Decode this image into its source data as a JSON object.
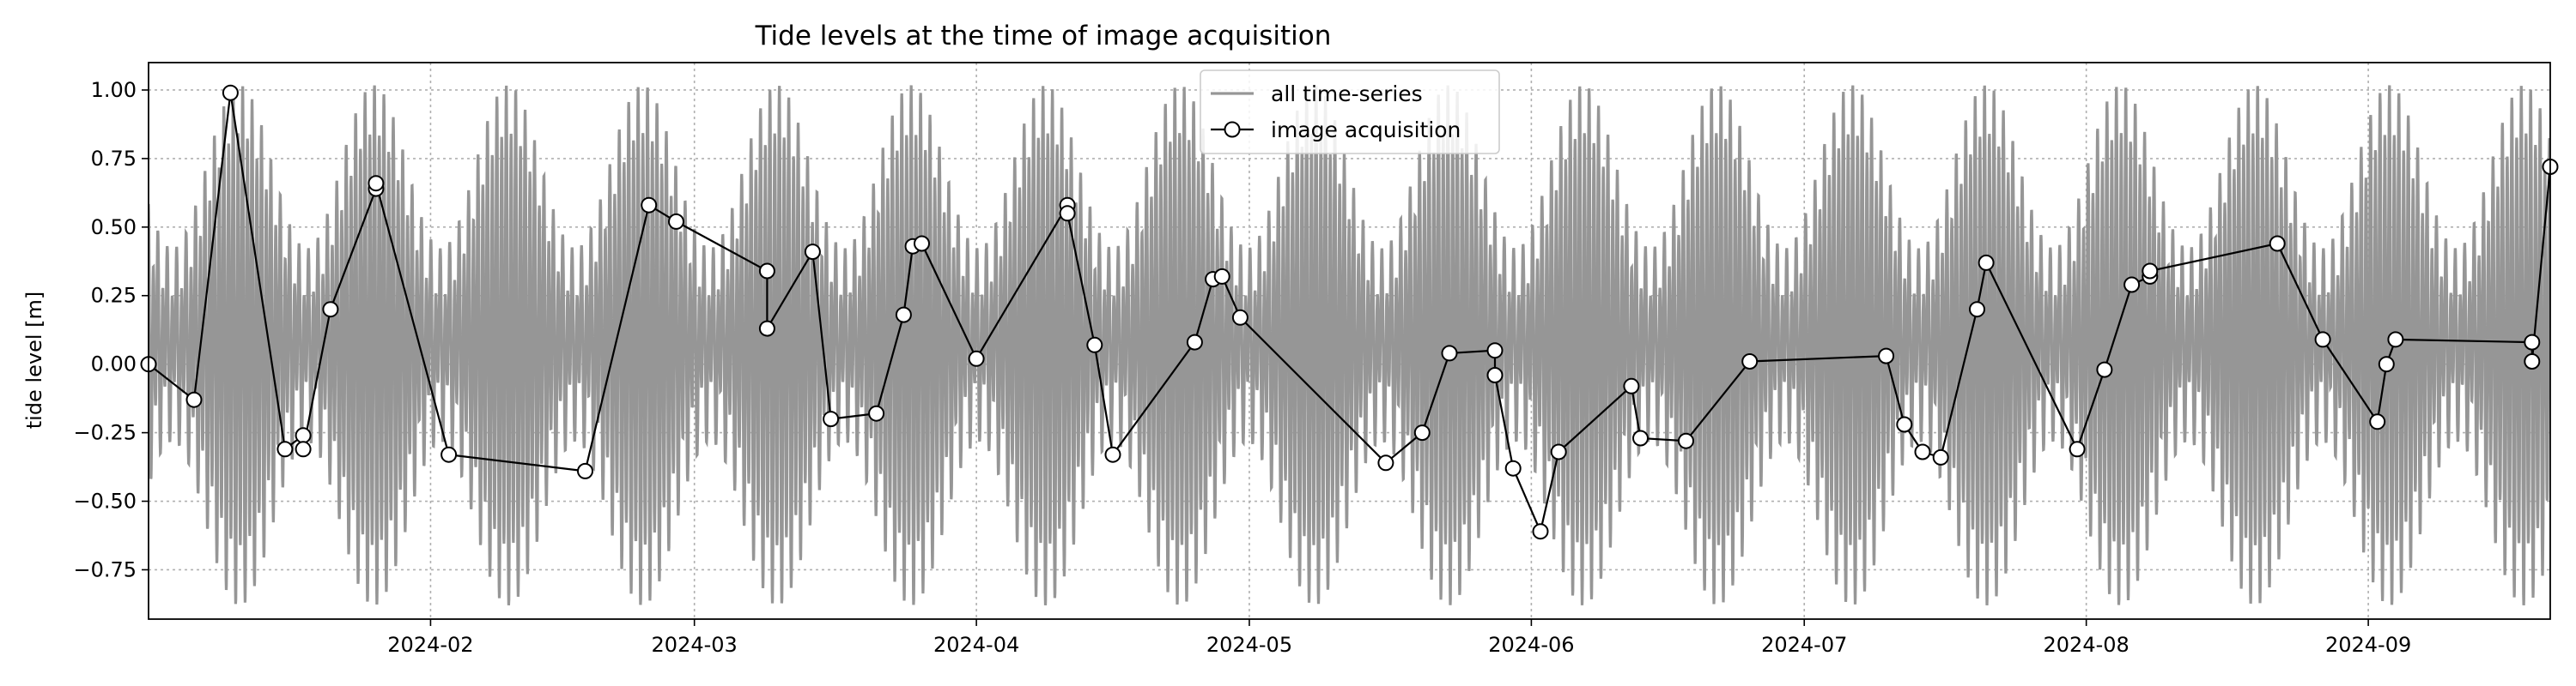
{
  "chart_data": {
    "type": "line",
    "title": "Tide levels at the time of image acquisition",
    "xlabel": "",
    "ylabel": "tide level [m]",
    "xlim": [
      "2024-01-01",
      "2024-09-21"
    ],
    "ylim": [
      -0.93,
      1.1
    ],
    "x_ticks": [
      "2024-02",
      "2024-03",
      "2024-04",
      "2024-05",
      "2024-06",
      "2024-07",
      "2024-08",
      "2024-09"
    ],
    "y_ticks": [
      "1.00",
      "0.75",
      "0.50",
      "0.25",
      "0.00",
      "−0.25",
      "−0.50",
      "−0.75"
    ],
    "y_tick_values": [
      1.0,
      0.75,
      0.5,
      0.25,
      0.0,
      -0.25,
      -0.5,
      -0.75
    ],
    "grid": true,
    "legend_position": "top-center",
    "series": [
      {
        "name": "all time-series",
        "style": "line",
        "color": "#969696",
        "description_model": {
          "semidiurnal_period_days": 0.5175,
          "spring_neap_period_days": 14.77,
          "typical_envelope_m": [
            -0.85,
            0.98
          ]
        }
      },
      {
        "name": "image acquisition",
        "style": "line-marker",
        "color": "#000000",
        "marker_face": "#ffffff",
        "points": [
          {
            "x": "2024-01-01",
            "y": 0.0
          },
          {
            "x": "2024-01-06",
            "y": -0.13
          },
          {
            "x": "2024-01-10",
            "y": 0.99
          },
          {
            "x": "2024-01-16",
            "y": -0.31
          },
          {
            "x": "2024-01-18",
            "y": -0.26
          },
          {
            "x": "2024-01-18",
            "y": -0.31
          },
          {
            "x": "2024-01-21",
            "y": 0.2
          },
          {
            "x": "2024-01-26",
            "y": 0.64
          },
          {
            "x": "2024-01-26",
            "y": 0.66
          },
          {
            "x": "2024-02-03",
            "y": -0.33
          },
          {
            "x": "2024-02-18",
            "y": -0.39
          },
          {
            "x": "2024-02-25",
            "y": 0.58
          },
          {
            "x": "2024-02-28",
            "y": 0.52
          },
          {
            "x": "2024-03-09",
            "y": 0.34
          },
          {
            "x": "2024-03-09",
            "y": 0.13
          },
          {
            "x": "2024-03-14",
            "y": 0.41
          },
          {
            "x": "2024-03-16",
            "y": -0.2
          },
          {
            "x": "2024-03-21",
            "y": -0.18
          },
          {
            "x": "2024-03-24",
            "y": 0.18
          },
          {
            "x": "2024-03-25",
            "y": 0.43
          },
          {
            "x": "2024-03-26",
            "y": 0.44
          },
          {
            "x": "2024-04-01",
            "y": 0.02
          },
          {
            "x": "2024-04-11",
            "y": 0.58
          },
          {
            "x": "2024-04-11",
            "y": 0.55
          },
          {
            "x": "2024-04-14",
            "y": 0.07
          },
          {
            "x": "2024-04-16",
            "y": -0.33
          },
          {
            "x": "2024-04-25",
            "y": 0.08
          },
          {
            "x": "2024-04-27",
            "y": 0.31
          },
          {
            "x": "2024-04-28",
            "y": 0.32
          },
          {
            "x": "2024-04-30",
            "y": 0.17
          },
          {
            "x": "2024-05-16",
            "y": -0.36
          },
          {
            "x": "2024-05-20",
            "y": -0.25
          },
          {
            "x": "2024-05-23",
            "y": 0.04
          },
          {
            "x": "2024-05-28",
            "y": 0.05
          },
          {
            "x": "2024-05-28",
            "y": -0.04
          },
          {
            "x": "2024-05-30",
            "y": -0.38
          },
          {
            "x": "2024-06-02",
            "y": -0.61
          },
          {
            "x": "2024-06-04",
            "y": -0.32
          },
          {
            "x": "2024-06-12",
            "y": -0.08
          },
          {
            "x": "2024-06-13",
            "y": -0.27
          },
          {
            "x": "2024-06-18",
            "y": -0.28
          },
          {
            "x": "2024-06-25",
            "y": 0.01
          },
          {
            "x": "2024-07-10",
            "y": 0.03
          },
          {
            "x": "2024-07-12",
            "y": -0.22
          },
          {
            "x": "2024-07-14",
            "y": -0.32
          },
          {
            "x": "2024-07-16",
            "y": -0.34
          },
          {
            "x": "2024-07-20",
            "y": 0.2
          },
          {
            "x": "2024-07-21",
            "y": 0.37
          },
          {
            "x": "2024-07-31",
            "y": -0.31
          },
          {
            "x": "2024-08-03",
            "y": -0.02
          },
          {
            "x": "2024-08-06",
            "y": 0.29
          },
          {
            "x": "2024-08-08",
            "y": 0.32
          },
          {
            "x": "2024-08-08",
            "y": 0.34
          },
          {
            "x": "2024-08-22",
            "y": 0.44
          },
          {
            "x": "2024-08-27",
            "y": 0.09
          },
          {
            "x": "2024-09-02",
            "y": -0.21
          },
          {
            "x": "2024-09-03",
            "y": 0.0
          },
          {
            "x": "2024-09-04",
            "y": 0.09
          },
          {
            "x": "2024-09-19",
            "y": 0.08
          },
          {
            "x": "2024-09-19",
            "y": 0.01
          },
          {
            "x": "2024-09-21",
            "y": 0.72
          }
        ]
      }
    ]
  }
}
